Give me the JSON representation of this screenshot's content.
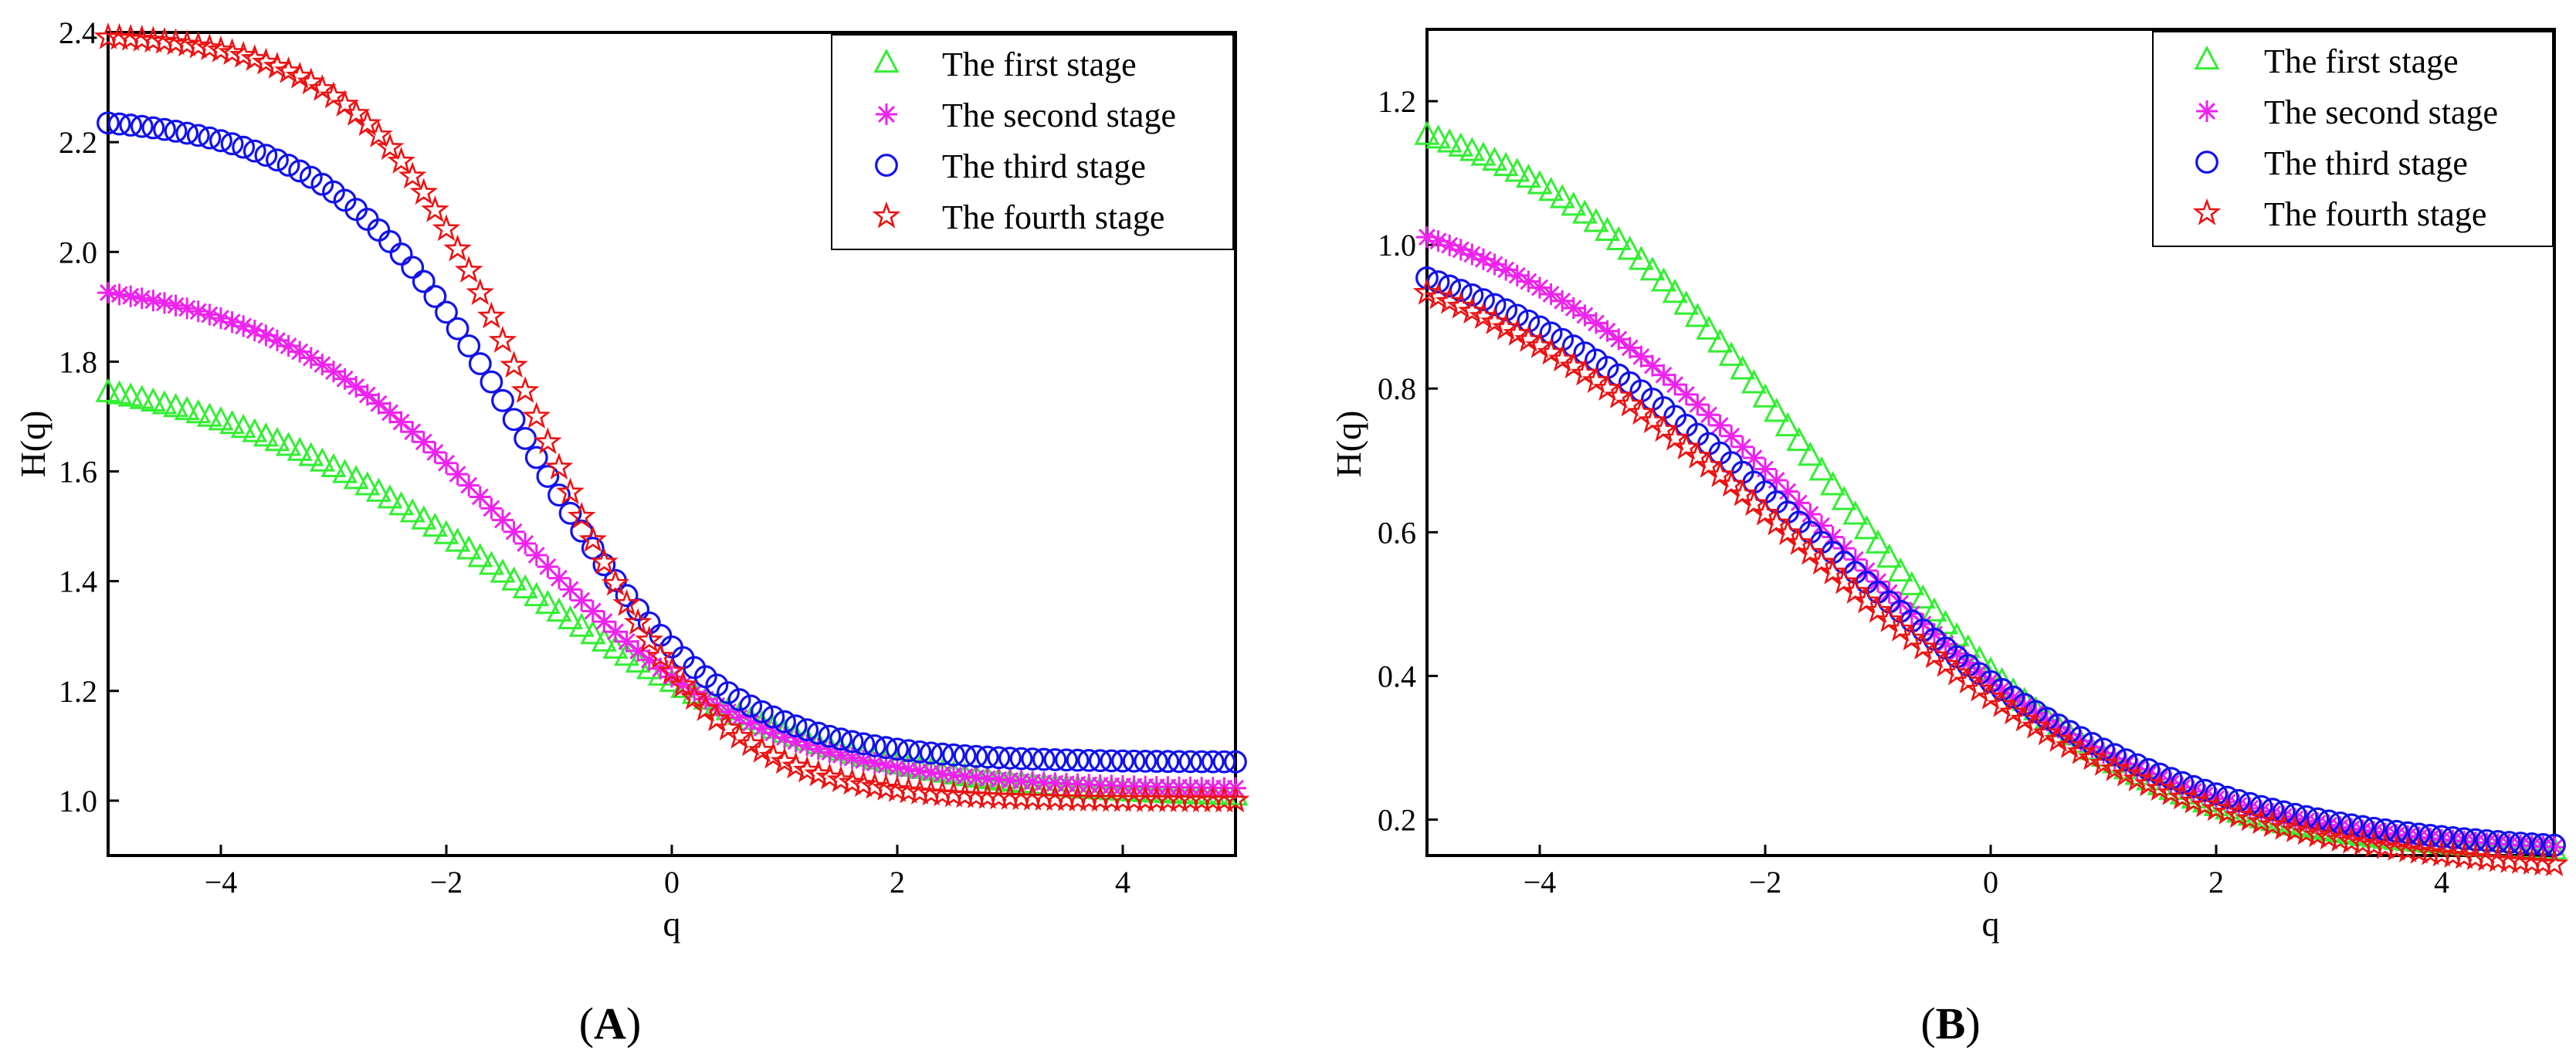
{
  "chart_data": [
    {
      "type": "scatter",
      "panel_label": "A",
      "xlabel": "q",
      "ylabel": "H(q)",
      "xlim": [
        -5,
        5
      ],
      "ylim": [
        0.9,
        2.4
      ],
      "xticks": [
        -4,
        -2,
        0,
        2,
        4
      ],
      "xtick_labels": [
        "−4",
        "−2",
        "0",
        "2",
        "4"
      ],
      "yticks": [
        1.0,
        1.2,
        1.4,
        1.6,
        1.8,
        2.0,
        2.2,
        2.4
      ],
      "ytick_labels": [
        "1.0",
        "1.2",
        "1.4",
        "1.6",
        "1.8",
        "2.0",
        "2.2",
        "2.4"
      ],
      "legend_position": "top-right",
      "series": [
        {
          "name": "The first stage",
          "marker": "triangle",
          "color": "#33ee33",
          "params": {
            "h_minus": 1.0,
            "h_plus": 1.8,
            "q0": -1.4,
            "w": 1.4
          }
        },
        {
          "name": "The second stage",
          "marker": "asterisk",
          "color": "#ee22ee",
          "params": {
            "h_minus": 1.02,
            "h_plus": 1.96,
            "q0": -1.4,
            "w": 1.1
          }
        },
        {
          "name": "The third stage",
          "marker": "circle",
          "color": "#1111ee",
          "params": {
            "h_minus": 1.07,
            "h_plus": 2.25,
            "q0": -1.3,
            "w": 0.85
          }
        },
        {
          "name": "The fourth stage",
          "marker": "star",
          "color": "#ee1111",
          "params": {
            "h_minus": 1.0,
            "h_plus": 2.4,
            "q0": -1.2,
            "w": 0.75
          }
        }
      ]
    },
    {
      "type": "scatter",
      "panel_label": "B",
      "xlabel": "q",
      "ylabel": "H(q)",
      "xlim": [
        -5,
        5
      ],
      "ylim": [
        0.15,
        1.3
      ],
      "xticks": [
        -4,
        -2,
        0,
        2,
        4
      ],
      "xtick_labels": [
        "−4",
        "−2",
        "0",
        "2",
        "4"
      ],
      "yticks": [
        0.2,
        0.4,
        0.6,
        0.8,
        1.0,
        1.2
      ],
      "ytick_labels": [
        "0.2",
        "0.4",
        "0.6",
        "0.8",
        "1.0",
        "1.2"
      ],
      "legend_position": "top-right",
      "series": [
        {
          "name": "The first stage",
          "marker": "triangle",
          "color": "#33ee33",
          "params": {
            "h_minus": 0.15,
            "h_plus": 1.22,
            "q0": -1.5,
            "w": 1.3
          }
        },
        {
          "name": "The second stage",
          "marker": "asterisk",
          "color": "#ee22ee",
          "params": {
            "h_minus": 0.15,
            "h_plus": 1.1,
            "q0": -1.6,
            "w": 1.5
          }
        },
        {
          "name": "The third stage",
          "marker": "circle",
          "color": "#1111ee",
          "params": {
            "h_minus": 0.15,
            "h_plus": 1.05,
            "q0": -1.6,
            "w": 1.6
          }
        },
        {
          "name": "The fourth stage",
          "marker": "star",
          "color": "#ee1111",
          "params": {
            "h_minus": 0.12,
            "h_plus": 1.05,
            "q0": -1.7,
            "w": 1.7
          }
        }
      ]
    }
  ]
}
